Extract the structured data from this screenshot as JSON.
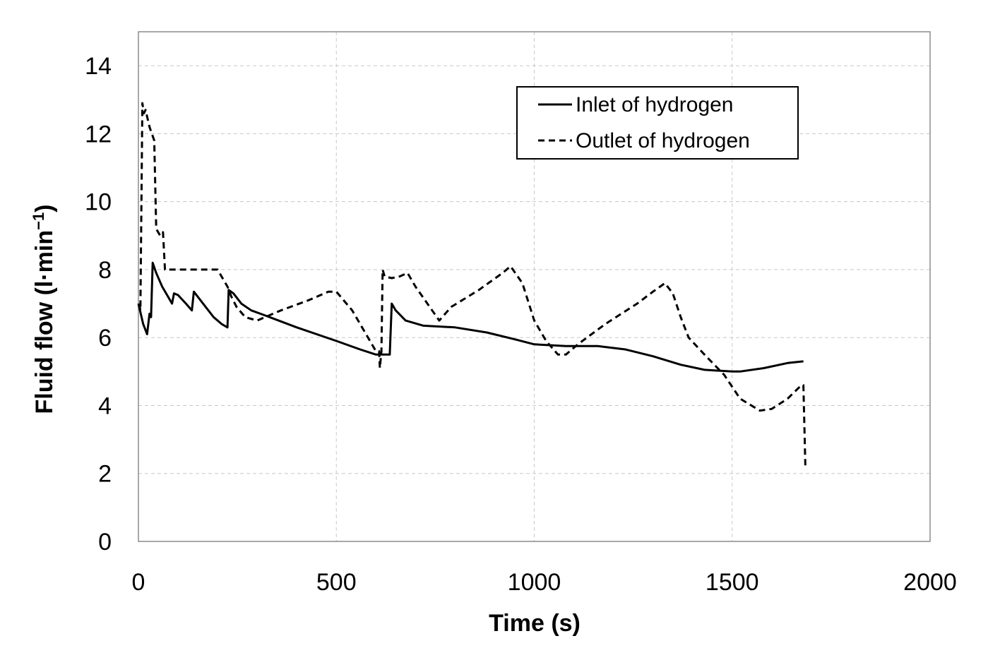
{
  "chart_data": {
    "type": "line",
    "title": "",
    "xlabel": "Time (s)",
    "ylabel_main": "Fluid flow (l·min",
    "ylabel_sup": "−1",
    "ylabel_close": ")",
    "xlim": [
      0,
      2000
    ],
    "ylim": [
      0,
      15
    ],
    "xticks": [
      0,
      500,
      1000,
      1500,
      2000
    ],
    "yticks": [
      0,
      2,
      4,
      6,
      8,
      10,
      12,
      14
    ],
    "xtick_labels": [
      "0",
      "500",
      "1000",
      "1500",
      "2000"
    ],
    "ytick_labels": [
      "0",
      "2",
      "4",
      "6",
      "8",
      "10",
      "12",
      "14"
    ],
    "grid": true,
    "legend_position": "top-right",
    "series": [
      {
        "name": "Inlet of hydrogen",
        "style": "solid",
        "color": "#000000",
        "points": [
          [
            0,
            7.0
          ],
          [
            12,
            6.4
          ],
          [
            22,
            6.1
          ],
          [
            28,
            6.7
          ],
          [
            32,
            6.6
          ],
          [
            36,
            8.2
          ],
          [
            45,
            7.9
          ],
          [
            60,
            7.5
          ],
          [
            75,
            7.2
          ],
          [
            85,
            7.0
          ],
          [
            90,
            7.3
          ],
          [
            100,
            7.25
          ],
          [
            120,
            7.0
          ],
          [
            135,
            6.8
          ],
          [
            140,
            7.35
          ],
          [
            150,
            7.2
          ],
          [
            170,
            6.9
          ],
          [
            190,
            6.6
          ],
          [
            210,
            6.4
          ],
          [
            225,
            6.3
          ],
          [
            228,
            7.4
          ],
          [
            240,
            7.3
          ],
          [
            260,
            7.0
          ],
          [
            285,
            6.8
          ],
          [
            320,
            6.65
          ],
          [
            400,
            6.3
          ],
          [
            500,
            5.9
          ],
          [
            560,
            5.65
          ],
          [
            600,
            5.5
          ],
          [
            635,
            5.5
          ],
          [
            640,
            7.0
          ],
          [
            650,
            6.8
          ],
          [
            675,
            6.5
          ],
          [
            720,
            6.35
          ],
          [
            800,
            6.3
          ],
          [
            880,
            6.15
          ],
          [
            950,
            5.95
          ],
          [
            1000,
            5.8
          ],
          [
            1080,
            5.75
          ],
          [
            1160,
            5.75
          ],
          [
            1230,
            5.65
          ],
          [
            1300,
            5.45
          ],
          [
            1370,
            5.2
          ],
          [
            1430,
            5.05
          ],
          [
            1500,
            5.0
          ],
          [
            1520,
            5.0
          ],
          [
            1580,
            5.1
          ],
          [
            1640,
            5.25
          ],
          [
            1680,
            5.3
          ]
        ]
      },
      {
        "name": "Outlet of hydrogen",
        "style": "dashed",
        "color": "#000000",
        "points": [
          [
            2,
            7.0
          ],
          [
            5,
            6.8
          ],
          [
            10,
            12.9
          ],
          [
            14,
            12.6
          ],
          [
            18,
            12.7
          ],
          [
            28,
            12.2
          ],
          [
            40,
            11.8
          ],
          [
            45,
            9.2
          ],
          [
            55,
            9.0
          ],
          [
            62,
            9.1
          ],
          [
            67,
            8.0
          ],
          [
            100,
            8.0
          ],
          [
            150,
            8.0
          ],
          [
            185,
            8.0
          ],
          [
            200,
            8.0
          ],
          [
            210,
            7.8
          ],
          [
            225,
            7.5
          ],
          [
            235,
            7.2
          ],
          [
            248,
            6.9
          ],
          [
            270,
            6.6
          ],
          [
            300,
            6.5
          ],
          [
            360,
            6.8
          ],
          [
            430,
            7.1
          ],
          [
            480,
            7.35
          ],
          [
            500,
            7.35
          ],
          [
            540,
            6.8
          ],
          [
            580,
            6.0
          ],
          [
            600,
            5.6
          ],
          [
            608,
            5.6
          ],
          [
            610,
            5.1
          ],
          [
            614,
            5.6
          ],
          [
            617,
            8.0
          ],
          [
            622,
            7.8
          ],
          [
            640,
            7.75
          ],
          [
            660,
            7.8
          ],
          [
            680,
            7.9
          ],
          [
            700,
            7.5
          ],
          [
            730,
            7.0
          ],
          [
            760,
            6.5
          ],
          [
            790,
            6.9
          ],
          [
            860,
            7.4
          ],
          [
            920,
            7.9
          ],
          [
            940,
            8.1
          ],
          [
            970,
            7.6
          ],
          [
            1000,
            6.5
          ],
          [
            1030,
            5.9
          ],
          [
            1060,
            5.5
          ],
          [
            1080,
            5.5
          ],
          [
            1110,
            5.8
          ],
          [
            1180,
            6.4
          ],
          [
            1260,
            7.0
          ],
          [
            1300,
            7.35
          ],
          [
            1330,
            7.6
          ],
          [
            1350,
            7.3
          ],
          [
            1370,
            6.6
          ],
          [
            1390,
            6.0
          ],
          [
            1430,
            5.5
          ],
          [
            1480,
            4.9
          ],
          [
            1520,
            4.2
          ],
          [
            1570,
            3.85
          ],
          [
            1600,
            3.9
          ],
          [
            1640,
            4.2
          ],
          [
            1675,
            4.6
          ],
          [
            1680,
            4.6
          ],
          [
            1685,
            2.2
          ]
        ]
      }
    ]
  }
}
